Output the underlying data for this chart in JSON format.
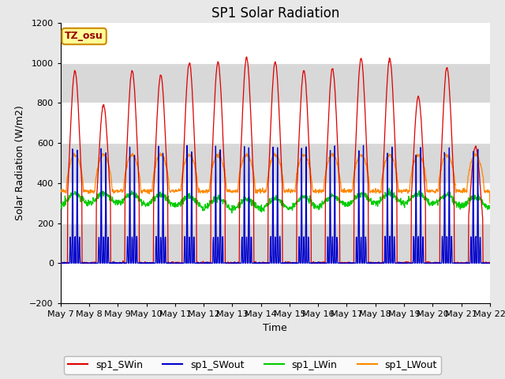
{
  "title": "SP1 Solar Radiation",
  "xlabel": "Time",
  "ylabel": "Solar Radiation (W/m2)",
  "ylim": [
    -200,
    1200
  ],
  "yticks": [
    -200,
    0,
    200,
    400,
    600,
    800,
    1000,
    1200
  ],
  "start_day": 7,
  "end_day": 22,
  "n_days": 15,
  "tz_label": "TZ_osu",
  "legend_entries": [
    "sp1_SWin",
    "sp1_SWout",
    "sp1_LWin",
    "sp1_LWout"
  ],
  "line_colors": [
    "#dd0000",
    "#0000cc",
    "#00cc00",
    "#ff8800"
  ],
  "fig_bg_color": "#e8e8e8",
  "plot_bg_color": "#d8d8d8",
  "white_band_alpha": 1.0,
  "annotation_bg": "#ffff99",
  "annotation_border": "#cc8800",
  "annotation_text_color": "#990000",
  "title_fontsize": 12,
  "label_fontsize": 9,
  "tick_fontsize": 8,
  "legend_fontsize": 9,
  "sw_peaks": [
    960,
    790,
    960,
    940,
    1000,
    1005,
    1025,
    1005,
    960,
    970,
    1020,
    1020,
    830,
    975,
    580
  ],
  "sw_out_plateau": 130,
  "lw_in_base": 310,
  "lw_out_base": 360,
  "lw_out_day_peak": 180
}
